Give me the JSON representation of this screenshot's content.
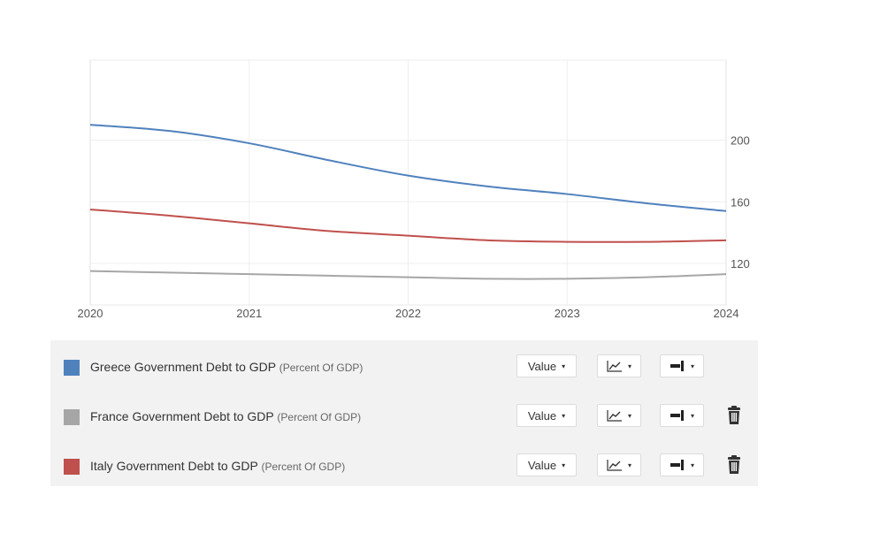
{
  "chart_data": {
    "type": "line",
    "x": [
      2020,
      2021,
      2022,
      2023,
      2024
    ],
    "xlim": [
      2020,
      2024
    ],
    "ylim": [
      93,
      252
    ],
    "y_ticks": [
      120,
      160,
      200
    ],
    "x_ticks": [
      "2020",
      "2021",
      "2022",
      "2023",
      "2024"
    ],
    "y_axis_position": "right",
    "grid": true,
    "series": [
      {
        "name": "Greece Government Debt to GDP",
        "color": "#4f81bd",
        "points": [
          [
            2020,
            210
          ],
          [
            2020.5,
            206
          ],
          [
            2021,
            198
          ],
          [
            2021.5,
            187
          ],
          [
            2022,
            177
          ],
          [
            2022.5,
            170
          ],
          [
            2023,
            165
          ],
          [
            2023.5,
            159
          ],
          [
            2024,
            154
          ]
        ]
      },
      {
        "name": "France Government Debt to GDP",
        "color": "#a6a6a6",
        "points": [
          [
            2020,
            115
          ],
          [
            2020.5,
            114
          ],
          [
            2021,
            113
          ],
          [
            2021.5,
            112
          ],
          [
            2022,
            111
          ],
          [
            2022.5,
            110
          ],
          [
            2023,
            110
          ],
          [
            2023.5,
            111
          ],
          [
            2024,
            113
          ]
        ]
      },
      {
        "name": "Italy Government Debt to GDP",
        "color": "#c0504d",
        "points": [
          [
            2020,
            155
          ],
          [
            2020.5,
            151
          ],
          [
            2021,
            146
          ],
          [
            2021.5,
            141
          ],
          [
            2022,
            138
          ],
          [
            2022.5,
            135
          ],
          [
            2023,
            134
          ],
          [
            2023.5,
            134
          ],
          [
            2024,
            135
          ]
        ]
      }
    ]
  },
  "legend": {
    "rows": [
      {
        "name": "Greece Government Debt to GDP",
        "unit": "(Percent Of GDP)",
        "color": "#4f81bd",
        "value_label": "Value",
        "removable": false
      },
      {
        "name": "France Government Debt to GDP",
        "unit": "(Percent Of GDP)",
        "color": "#a6a6a6",
        "value_label": "Value",
        "removable": true
      },
      {
        "name": "Italy Government Debt to GDP",
        "unit": "(Percent Of GDP)",
        "color": "#c0504d",
        "value_label": "Value",
        "removable": true
      }
    ],
    "icons": {
      "caret": "▾",
      "chart_type": "line-chart-icon",
      "axis": "axis-side-icon",
      "delete": "trash-icon"
    }
  }
}
